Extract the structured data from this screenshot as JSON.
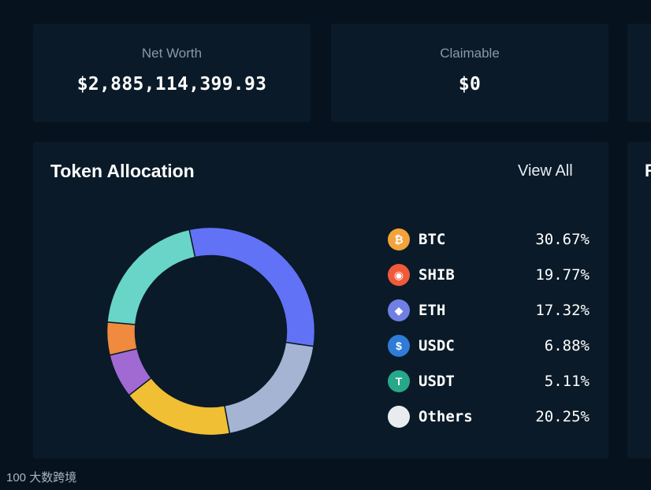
{
  "net_worth": {
    "label": "Net Worth",
    "value": "$2,885,114,399.93"
  },
  "claimable": {
    "label": "Claimable",
    "value": "$0"
  },
  "peek_card": {
    "glyph": "R"
  },
  "allocation": {
    "title": "Token Allocation",
    "view_all_label": "View All",
    "tokens": [
      {
        "symbol": "BTC",
        "percent": "30.67%",
        "icon": "bitcoin-icon",
        "icon_glyph": "₿",
        "color": "#6272f6",
        "icon_bg": "#f3a33a"
      },
      {
        "symbol": "SHIB",
        "percent": "19.77%",
        "icon": "shiba-icon",
        "icon_glyph": "◉",
        "color": "#a4b4d2",
        "icon_bg": "#f05a3a"
      },
      {
        "symbol": "ETH",
        "percent": "17.32%",
        "icon": "ethereum-icon",
        "icon_glyph": "◆",
        "color": "#f1bf34",
        "icon_bg": "#6f7fe6"
      },
      {
        "symbol": "USDC",
        "percent": "6.88%",
        "icon": "usdc-icon",
        "icon_glyph": "$",
        "color": "#a06ad2",
        "icon_bg": "#2f7bd8"
      },
      {
        "symbol": "USDT",
        "percent": "5.11%",
        "icon": "tether-icon",
        "icon_glyph": "T",
        "color": "#ef8a3e",
        "icon_bg": "#27a88a"
      },
      {
        "symbol": "Others",
        "percent": "20.25%",
        "icon": "others-icon",
        "icon_glyph": "",
        "color": "#69d5c8",
        "icon_bg": "#e9ecef"
      }
    ]
  },
  "watermark": {
    "text": "100 大数跨境"
  }
}
